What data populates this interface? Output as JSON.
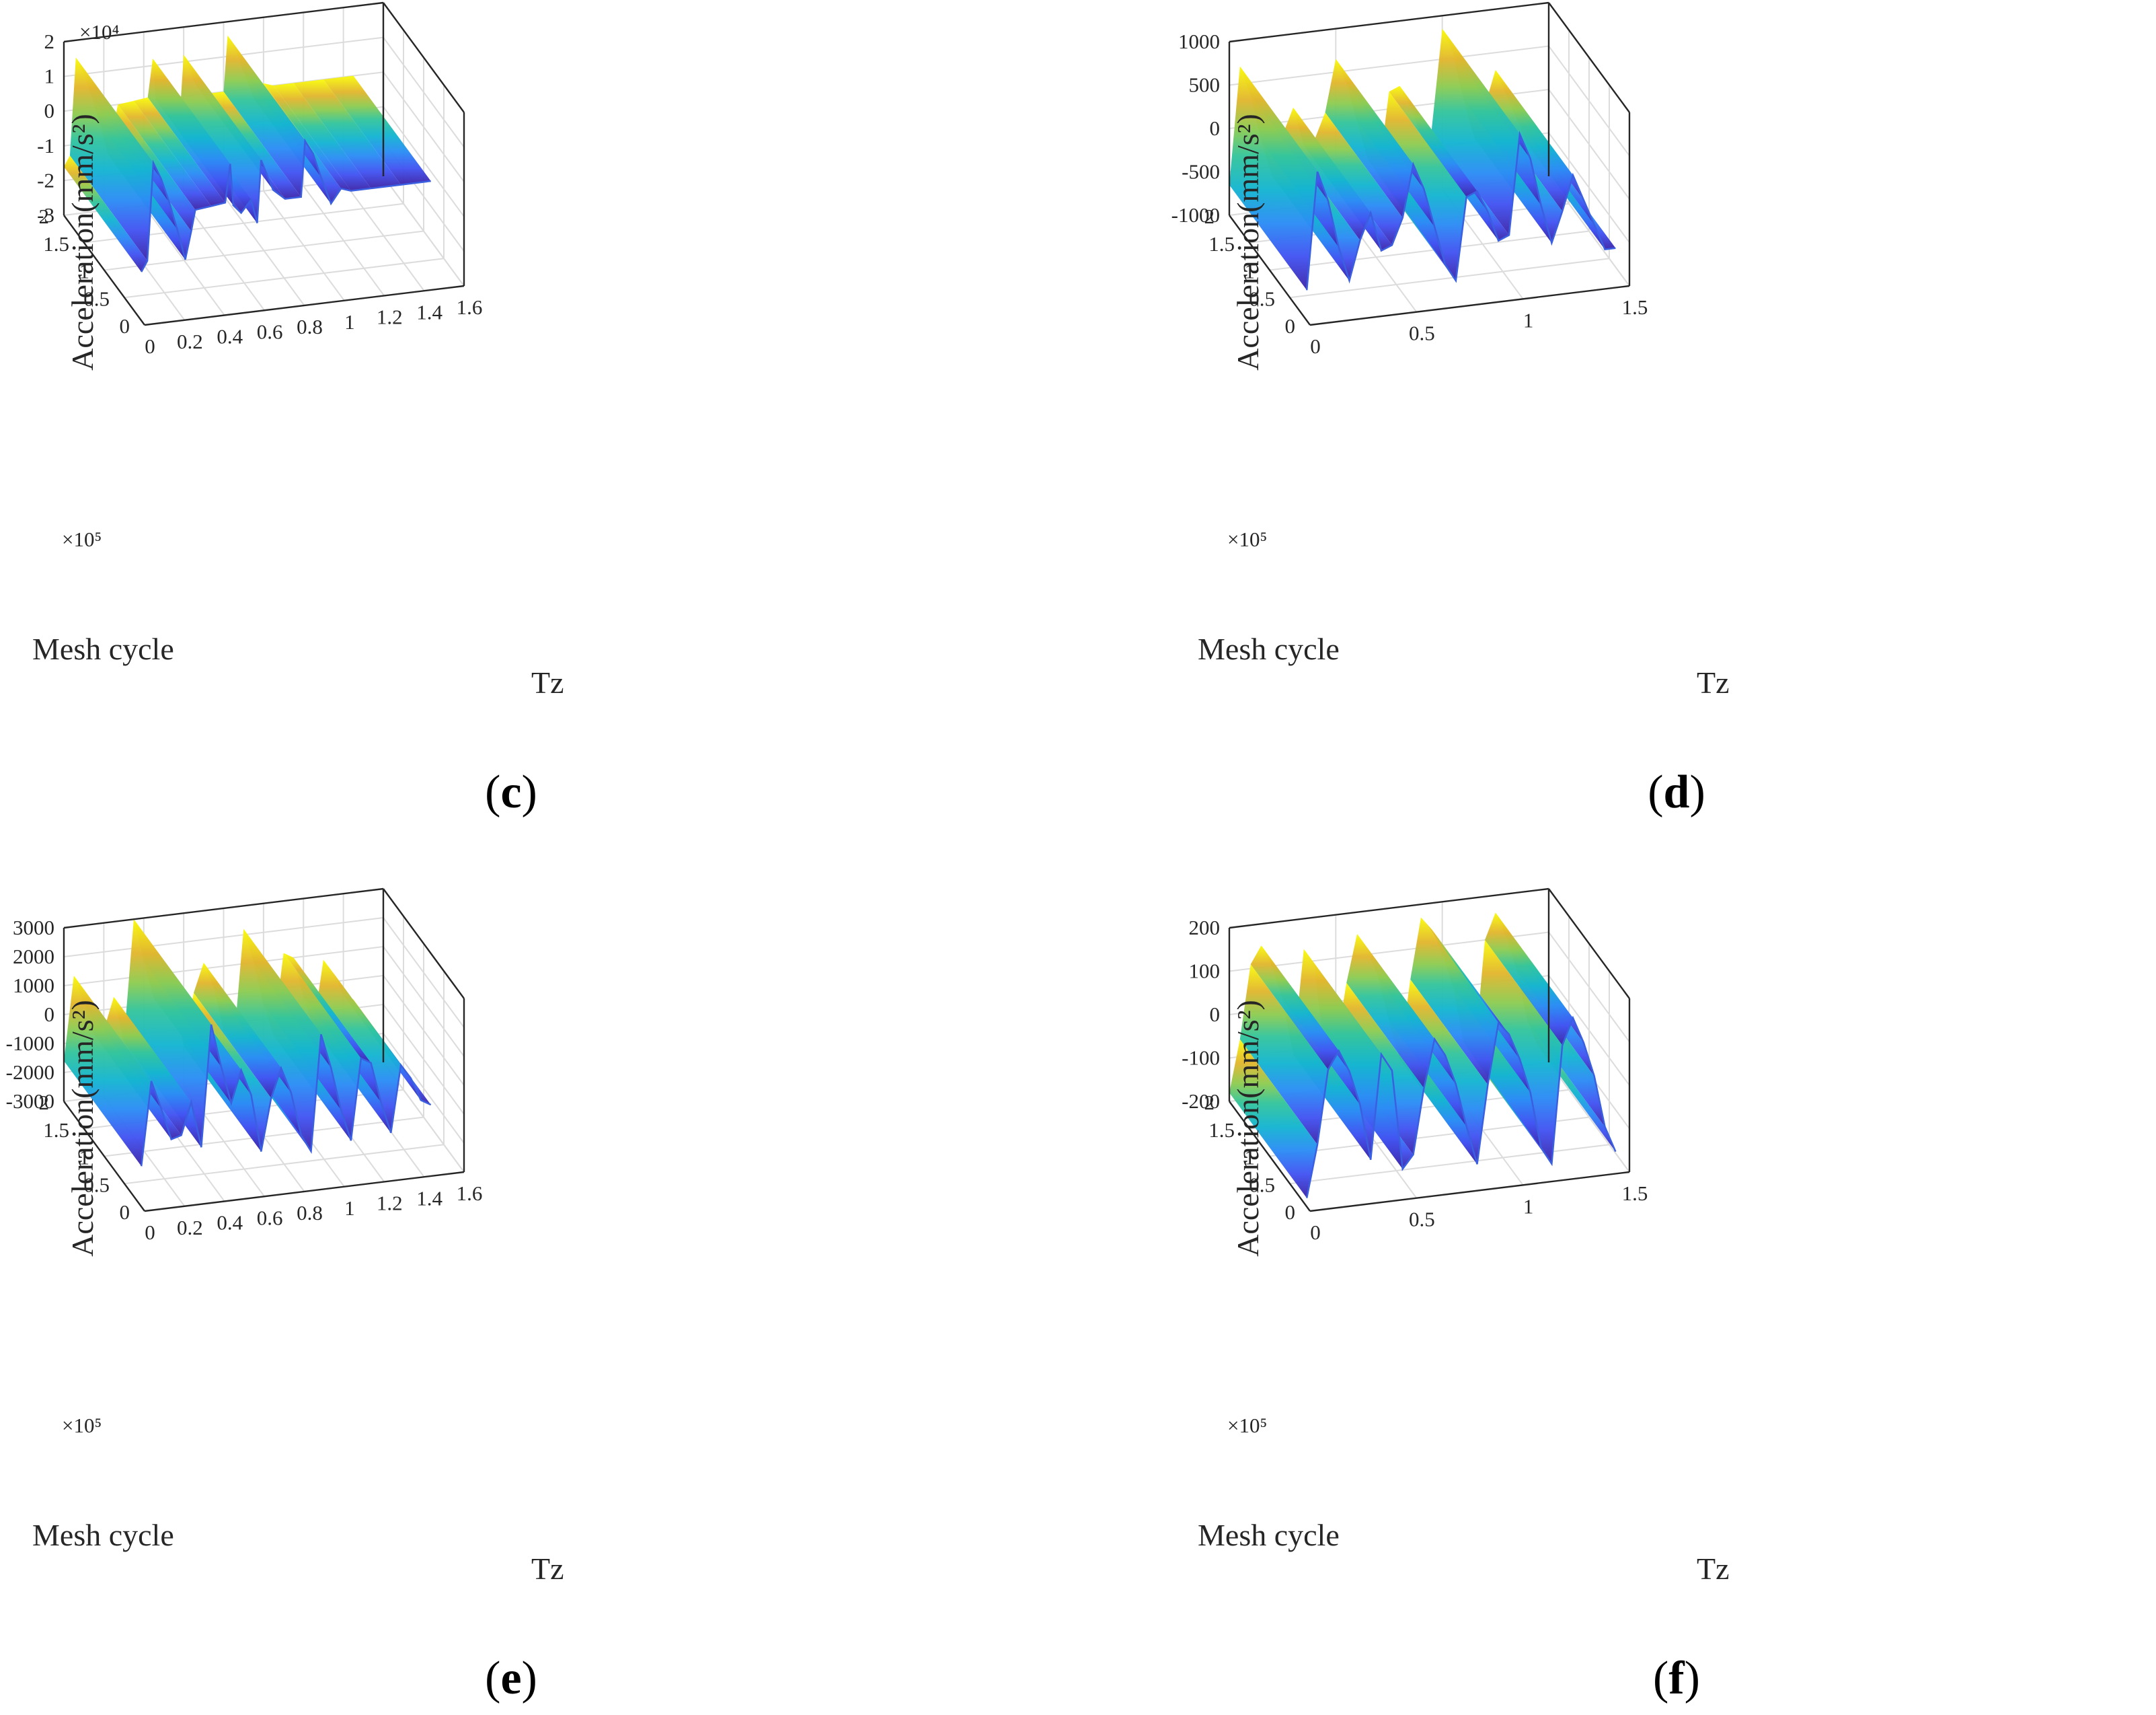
{
  "figure": {
    "panels": [
      "c",
      "d",
      "e",
      "f"
    ]
  },
  "chart_data": [
    {
      "panel": "c",
      "caption_letter": "c",
      "type": "surface3d",
      "zlabel": "Acceleration(mm/s²)",
      "xlabel": "Tz",
      "ylabel": "Mesh cycle",
      "z_multiplier": "×10⁴",
      "y_multiplier": "×10⁵",
      "z_ticks": [
        "2",
        "1",
        "0",
        "-1",
        "-2",
        "-3"
      ],
      "z_tick_values": [
        2,
        1,
        0,
        -1,
        -2,
        -3
      ],
      "y_ticks": [
        "2",
        "1.5",
        "1",
        "0.5",
        "0"
      ],
      "y_tick_values": [
        2,
        1.5,
        1,
        0.5,
        0
      ],
      "x_ticks": [
        "0",
        "0.2",
        "0.4",
        "0.6",
        "0.8",
        "1",
        "1.2",
        "1.4",
        "1.6"
      ],
      "x_tick_values": [
        0,
        0.2,
        0.4,
        0.6,
        0.8,
        1,
        1.2,
        1.4,
        1.6
      ],
      "xlim": [
        0,
        1.6
      ],
      "ylim": [
        0,
        2
      ],
      "zlim": [
        -3,
        2
      ],
      "profile": {
        "x": [
          0,
          0.03,
          0.06,
          0.1,
          0.14,
          0.18,
          0.22,
          0.25,
          0.27,
          0.35,
          0.42,
          0.445,
          0.46,
          0.5,
          0.55,
          0.58,
          0.6,
          0.62,
          0.66,
          0.72,
          0.8,
          0.82,
          0.86,
          0.9,
          0.95,
          1.0,
          1.05,
          1.15,
          1.3,
          1.45
        ],
        "z": [
          -1.6,
          -1.3,
          1.5,
          1.0,
          0.3,
          -0.5,
          -1.4,
          -0.6,
          0.0,
          0.05,
          0.1,
          1.2,
          0.0,
          -0.25,
          0.1,
          -0.6,
          1.2,
          0.9,
          0.3,
          0.0,
          0.0,
          1.6,
          1.2,
          0.5,
          -0.3,
          0.1,
          0.0,
          0.0,
          0.0,
          0.0
        ]
      }
    },
    {
      "panel": "d",
      "caption_letter": "d",
      "type": "surface3d",
      "zlabel": "Acceleration(mm/s²)",
      "xlabel": "Tz",
      "ylabel": "Mesh cycle",
      "z_multiplier": "",
      "y_multiplier": "×10⁵",
      "z_ticks": [
        "1000",
        "500",
        "0",
        "-500",
        "-1000"
      ],
      "z_tick_values": [
        1000,
        500,
        0,
        -500,
        -1000
      ],
      "y_ticks": [
        "2",
        "1.5",
        "1",
        "0.5",
        "0"
      ],
      "y_tick_values": [
        2,
        1.5,
        1,
        0.5,
        0
      ],
      "x_ticks": [
        "0",
        "0.5",
        "1",
        "1.5"
      ],
      "x_tick_values": [
        0,
        0.5,
        1,
        1.5
      ],
      "xlim": [
        0,
        1.5
      ],
      "ylim": [
        0,
        2
      ],
      "zlim": [
        -1000,
        1000
      ],
      "profile": {
        "x": [
          0,
          0.05,
          0.1,
          0.15,
          0.2,
          0.25,
          0.3,
          0.35,
          0.4,
          0.45,
          0.5,
          0.55,
          0.6,
          0.65,
          0.7,
          0.75,
          0.8,
          0.85,
          0.9,
          0.95,
          1.0,
          1.05,
          1.1,
          1.15,
          1.2,
          1.25,
          1.3,
          1.35,
          1.4,
          1.45
        ],
        "z": [
          -650,
          700,
          350,
          -200,
          -600,
          -150,
          150,
          -300,
          -250,
          50,
          650,
          350,
          -100,
          -550,
          -750,
          200,
          250,
          0,
          -350,
          -300,
          850,
          550,
          0,
          -450,
          -100,
          300,
          0,
          -300,
          -600,
          -600
        ]
      }
    },
    {
      "panel": "e",
      "caption_letter": "e",
      "type": "surface3d",
      "zlabel": "Acceleration(mm/s²)",
      "xlabel": "Tz",
      "ylabel": "Mesh cycle",
      "z_multiplier": "",
      "y_multiplier": "×10⁵",
      "z_ticks": [
        "3000",
        "2000",
        "1000",
        "0",
        "-1000",
        "-2000",
        "-3000"
      ],
      "z_tick_values": [
        3000,
        2000,
        1000,
        0,
        -1000,
        -2000,
        -3000
      ],
      "y_ticks": [
        "2",
        "1.5",
        "1",
        "0.5",
        "0"
      ],
      "y_tick_values": [
        2,
        1.5,
        1,
        0.5,
        0
      ],
      "x_ticks": [
        "0",
        "0.2",
        "0.4",
        "0.6",
        "0.8",
        "1",
        "1.2",
        "1.4",
        "1.6"
      ],
      "x_tick_values": [
        0,
        0.2,
        0.4,
        0.6,
        0.8,
        1,
        1.2,
        1.4,
        1.6
      ],
      "xlim": [
        0,
        1.6
      ],
      "ylim": [
        0,
        2
      ],
      "zlim": [
        -3000,
        3000
      ],
      "profile": {
        "x": [
          0,
          0.05,
          0.1,
          0.15,
          0.2,
          0.25,
          0.3,
          0.35,
          0.4,
          0.45,
          0.5,
          0.55,
          0.6,
          0.65,
          0.7,
          0.75,
          0.8,
          0.85,
          0.9,
          0.95,
          1.0,
          1.05,
          1.1,
          1.15,
          1.2,
          1.25,
          1.3,
          1.35,
          1.4,
          1.45
        ],
        "z": [
          -1600,
          1300,
          300,
          -800,
          -700,
          400,
          -1200,
          3000,
          1500,
          200,
          1300,
          400,
          -1600,
          200,
          1200,
          300,
          -1200,
          -1800,
          2200,
          1000,
          -500,
          -1600,
          1200,
          1000,
          -400,
          -1500,
          800,
          300,
          -500,
          -700
        ]
      }
    },
    {
      "panel": "f",
      "caption_letter": "f",
      "type": "surface3d",
      "zlabel": "Acceleration(mm/s²)",
      "xlabel": "Tz",
      "ylabel": "Mesh cycle",
      "z_multiplier": "",
      "y_multiplier": "×10⁵",
      "z_ticks": [
        "200",
        "100",
        "0",
        "-100",
        "-200"
      ],
      "z_tick_values": [
        200,
        100,
        0,
        -100,
        -200
      ],
      "y_ticks": [
        "2",
        "1.5",
        "1",
        "0.5",
        "0"
      ],
      "y_tick_values": [
        2,
        1.5,
        1,
        0.5,
        0
      ],
      "x_ticks": [
        "0",
        "0.5",
        "1",
        "1.5"
      ],
      "x_tick_values": [
        0,
        0.5,
        1,
        1.5
      ],
      "xlim": [
        0,
        1.5
      ],
      "ylim": [
        0,
        2
      ],
      "zlim": [
        -200,
        200
      ],
      "profile": {
        "x": [
          0,
          0.05,
          0.1,
          0.15,
          0.2,
          0.25,
          0.3,
          0.35,
          0.4,
          0.45,
          0.5,
          0.55,
          0.6,
          0.65,
          0.7,
          0.75,
          0.8,
          0.85,
          0.9,
          0.95,
          1.0,
          1.05,
          1.1,
          1.15,
          1.2,
          1.25,
          1.3,
          1.35,
          1.4,
          1.45
        ],
        "z": [
          -180,
          -60,
          110,
          150,
          100,
          20,
          -110,
          130,
          90,
          -140,
          -110,
          40,
          150,
          110,
          40,
          -60,
          -150,
          30,
          170,
          140,
          80,
          0,
          -130,
          -170,
          100,
          160,
          100,
          20,
          -100,
          -160
        ]
      }
    }
  ]
}
